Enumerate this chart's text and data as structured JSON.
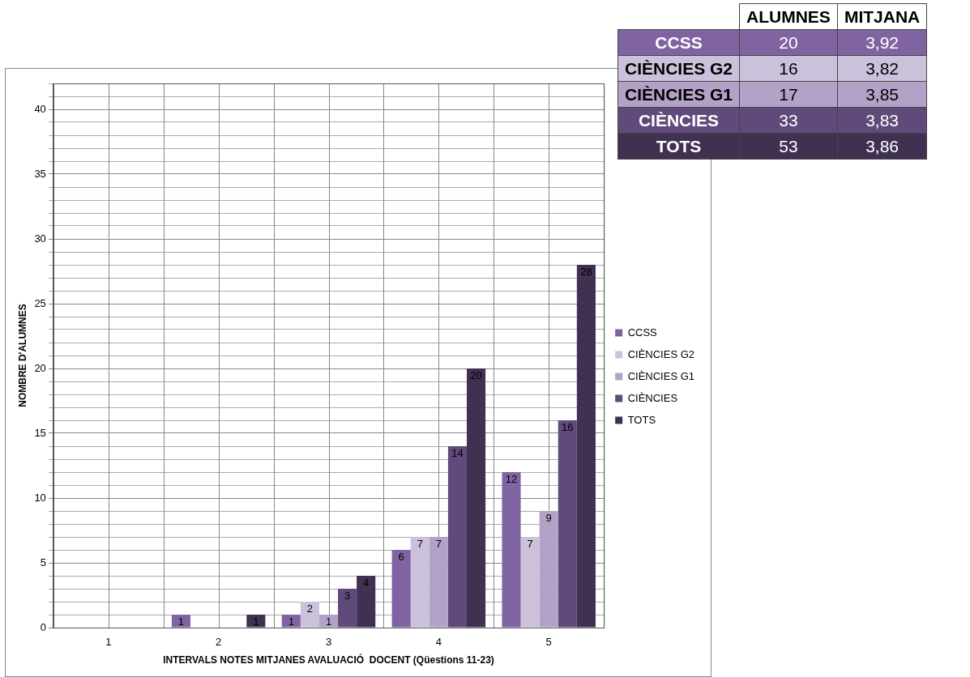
{
  "chart_data": [
    {
      "type": "bar",
      "xlabel": "INTERVALS NOTES MITJANES AVALUACIÓ  DOCENT (Qüestions 11-23)",
      "ylabel": "NOMBRE D'ALUMNES",
      "categories": [
        "1",
        "2",
        "3",
        "4",
        "5"
      ],
      "series": [
        {
          "name": "CCSS",
          "color": "#8064a2",
          "values": [
            0,
            1,
            1,
            6,
            12
          ],
          "value_labels": [
            null,
            "1",
            "1",
            "6",
            "12"
          ]
        },
        {
          "name": "CIÈNCIES G2",
          "color": "#ccc1da",
          "values": [
            0,
            0,
            2,
            7,
            7
          ],
          "value_labels": [
            null,
            null,
            "2",
            "7",
            "7"
          ]
        },
        {
          "name": "CIÈNCIES G1",
          "color": "#b3a2c7",
          "values": [
            0,
            0,
            1,
            7,
            9
          ],
          "value_labels": [
            null,
            null,
            "1",
            "7",
            "9"
          ]
        },
        {
          "name": "CIÈNCIES",
          "color": "#604a7b",
          "values": [
            0,
            0,
            3,
            14,
            16
          ],
          "value_labels": [
            null,
            null,
            "3",
            "14",
            "16"
          ]
        },
        {
          "name": "TOTS",
          "color": "#403152",
          "values": [
            0,
            1,
            4,
            20,
            28
          ],
          "value_labels": [
            null,
            "1",
            "4",
            "20",
            "28"
          ]
        }
      ],
      "ylim": [
        0,
        42
      ],
      "yticks": [
        0,
        {
          "value": 1,
          "label": null
        },
        {
          "value": 2,
          "label": null
        },
        {
          "value": 3,
          "label": null
        },
        {
          "value": 4,
          "label": null
        },
        5,
        {
          "value": 6,
          "label": null
        },
        {
          "value": 7,
          "label": null
        },
        {
          "value": 8,
          "label": null
        },
        {
          "value": 9,
          "label": null
        },
        10,
        {
          "value": 11,
          "label": null
        },
        {
          "value": 12,
          "label": null
        },
        {
          "value": 13,
          "label": null
        },
        {
          "value": 14,
          "label": null
        },
        15,
        {
          "value": 16,
          "label": null
        },
        {
          "value": 17,
          "label": null
        },
        {
          "value": 18,
          "label": null
        },
        {
          "value": 19,
          "label": null
        },
        20,
        {
          "value": 21,
          "label": null
        },
        {
          "value": 22,
          "label": null
        },
        {
          "value": 23,
          "label": null
        },
        {
          "value": 24,
          "label": null
        },
        25,
        {
          "value": 26,
          "label": null
        },
        {
          "value": 27,
          "label": null
        },
        {
          "value": 28,
          "label": null
        },
        {
          "value": 29,
          "label": null
        },
        30,
        {
          "value": 31,
          "label": null
        },
        {
          "value": 32,
          "label": null
        },
        {
          "value": 33,
          "label": null
        },
        {
          "value": 34,
          "label": null
        },
        35,
        {
          "value": 36,
          "label": null
        },
        {
          "value": 37,
          "label": null
        },
        {
          "value": 38,
          "label": null
        },
        {
          "value": 39,
          "label": null
        },
        40,
        {
          "value": 41,
          "label": null
        },
        {
          "value": 42,
          "label": null
        }
      ],
      "grid": true,
      "legend": "right"
    },
    {
      "type": "other",
      "categories": [
        "CCSS",
        "CIÈNCIES G2",
        "CIÈNCIES G1",
        "CIÈNCIES",
        "TOTS"
      ],
      "colors": [
        "#8064a2",
        "#ccc1da",
        "#b3a2c7",
        "#604a7b",
        "#403152"
      ],
      "series": [
        {
          "name": "ALUMNES",
          "colors": [
            "#8064a2",
            "#ccc1da",
            "#b3a2c7",
            "#604a7b",
            "#403152"
          ],
          "values": [
            20,
            16,
            17,
            33,
            53
          ]
        },
        {
          "name": "MITJANA",
          "colors": [
            "#8064a2",
            "#ccc1da",
            "#b3a2c7",
            "#604a7b",
            "#403152"
          ],
          "values": [
            3.92,
            3.82,
            3.85,
            3.83,
            3.86
          ],
          "value_labels": [
            "3,92",
            "3,82",
            "3,85",
            "3,83",
            "3,86"
          ]
        }
      ],
      "data_labels": true
    }
  ]
}
